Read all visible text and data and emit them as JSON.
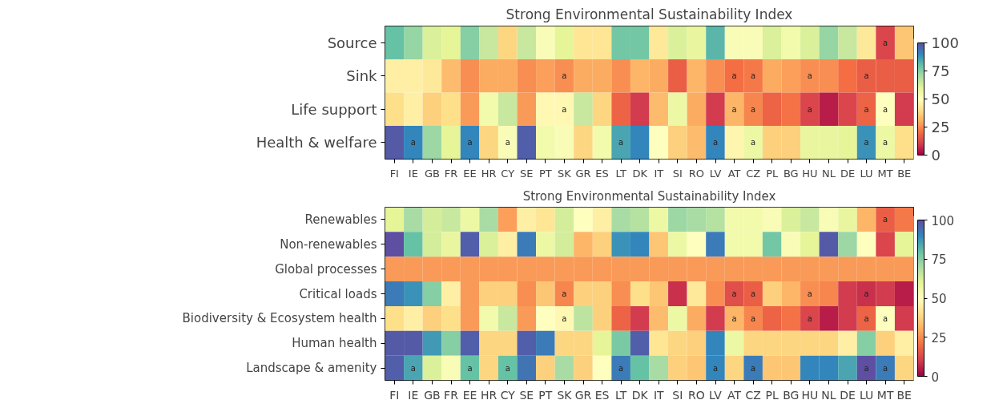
{
  "chart_data": [
    {
      "type": "heatmap",
      "title": "Strong Environmental Sustainability Index",
      "categories": [
        "FI",
        "IE",
        "GB",
        "FR",
        "EE",
        "HR",
        "CY",
        "SE",
        "PT",
        "SK",
        "GR",
        "ES",
        "LT",
        "DK",
        "IT",
        "SI",
        "RO",
        "LV",
        "AT",
        "CZ",
        "PL",
        "BG",
        "HU",
        "NL",
        "DE",
        "LU",
        "MT",
        "BE"
      ],
      "y_categories": [
        "Source",
        "Sink",
        "Life support",
        "Health & welfare"
      ],
      "cells": [
        [
          80,
          73,
          62,
          60,
          75,
          65,
          38,
          65,
          52,
          60,
          42,
          42,
          78,
          78,
          43,
          62,
          58,
          82,
          52,
          52,
          62,
          55,
          62,
          73,
          65,
          43,
          12,
          35
        ],
        [
          45,
          45,
          43,
          33,
          25,
          30,
          30,
          25,
          28,
          25,
          30,
          30,
          25,
          32,
          30,
          17,
          32,
          25,
          20,
          22,
          30,
          28,
          25,
          25,
          20,
          17,
          17,
          17
        ],
        [
          40,
          45,
          37,
          40,
          27,
          55,
          65,
          27,
          48,
          48,
          65,
          38,
          18,
          10,
          33,
          57,
          30,
          10,
          32,
          24,
          18,
          21,
          12,
          5,
          12,
          18,
          50,
          10
        ],
        [
          98,
          90,
          72,
          60,
          90,
          38,
          52,
          97,
          55,
          52,
          38,
          55,
          85,
          90,
          50,
          37,
          33,
          90,
          47,
          57,
          37,
          37,
          58,
          58,
          60,
          88,
          57,
          40
        ]
      ],
      "cell_labels": [
        [
          null,
          null,
          null,
          null,
          null,
          null,
          null,
          null,
          null,
          null,
          null,
          null,
          null,
          null,
          null,
          null,
          null,
          null,
          null,
          null,
          null,
          null,
          null,
          null,
          null,
          null,
          "a",
          null
        ],
        [
          null,
          null,
          null,
          null,
          null,
          null,
          null,
          null,
          null,
          "a",
          null,
          null,
          null,
          null,
          null,
          null,
          null,
          null,
          "a",
          "a",
          null,
          null,
          "a",
          null,
          null,
          "a",
          null,
          null
        ],
        [
          null,
          null,
          null,
          null,
          null,
          null,
          null,
          null,
          null,
          "a",
          null,
          null,
          null,
          null,
          null,
          null,
          null,
          null,
          "a",
          "a",
          null,
          null,
          "a",
          null,
          null,
          "a",
          "a",
          null
        ],
        [
          null,
          "a",
          null,
          null,
          "a",
          null,
          "a",
          null,
          null,
          null,
          null,
          null,
          "a",
          null,
          null,
          null,
          null,
          "a",
          null,
          "a",
          null,
          null,
          null,
          null,
          null,
          "a",
          "a",
          null
        ]
      ],
      "clim": [
        0,
        100
      ],
      "cticks": [
        0,
        25,
        50,
        75,
        100
      ]
    },
    {
      "type": "heatmap",
      "title": "Strong Environmental Sustainability Index",
      "categories": [
        "FI",
        "IE",
        "GB",
        "FR",
        "EE",
        "HR",
        "CY",
        "SE",
        "PT",
        "SK",
        "GR",
        "ES",
        "LT",
        "DK",
        "IT",
        "SI",
        "RO",
        "LV",
        "AT",
        "CZ",
        "PL",
        "BG",
        "HU",
        "NL",
        "DE",
        "LU",
        "MT",
        "BE"
      ],
      "y_categories": [
        "Renewables",
        "Non-renewables",
        "Global processes",
        "Critical loads",
        "Biodiversity & Ecosystem health",
        "Human health",
        "Landscape & amenity"
      ],
      "cells": [
        [
          60,
          70,
          63,
          65,
          57,
          70,
          28,
          45,
          42,
          63,
          50,
          45,
          70,
          68,
          57,
          72,
          70,
          68,
          55,
          55,
          52,
          62,
          65,
          52,
          58,
          32,
          17,
          22
        ],
        [
          100,
          80,
          63,
          58,
          97,
          62,
          45,
          92,
          57,
          63,
          32,
          37,
          88,
          90,
          35,
          57,
          50,
          92,
          55,
          55,
          78,
          52,
          60,
          98,
          72,
          50,
          12,
          60
        ],
        [
          27,
          27,
          27,
          27,
          27,
          27,
          27,
          27,
          27,
          27,
          27,
          27,
          27,
          27,
          27,
          27,
          27,
          27,
          27,
          27,
          27,
          27,
          27,
          27,
          27,
          27,
          27,
          27
        ],
        [
          92,
          88,
          75,
          45,
          27,
          37,
          37,
          25,
          35,
          24,
          37,
          37,
          25,
          40,
          35,
          8,
          43,
          25,
          14,
          17,
          37,
          32,
          25,
          24,
          10,
          8,
          10,
          5
        ],
        [
          40,
          45,
          37,
          40,
          27,
          55,
          65,
          27,
          50,
          48,
          67,
          37,
          18,
          10,
          33,
          57,
          30,
          10,
          32,
          24,
          18,
          21,
          12,
          5,
          10,
          18,
          50,
          10
        ],
        [
          98,
          98,
          87,
          75,
          97,
          38,
          38,
          97,
          92,
          38,
          38,
          60,
          77,
          97,
          42,
          38,
          37,
          90,
          57,
          38,
          38,
          38,
          38,
          38,
          45,
          75,
          37,
          45
        ],
        [
          97,
          85,
          62,
          52,
          80,
          38,
          80,
          93,
          37,
          70,
          37,
          50,
          92,
          80,
          70,
          37,
          35,
          90,
          38,
          92,
          35,
          35,
          90,
          90,
          85,
          100,
          92,
          38
        ]
      ],
      "cell_labels": [
        [
          null,
          null,
          null,
          null,
          null,
          null,
          null,
          null,
          null,
          null,
          null,
          null,
          null,
          null,
          null,
          null,
          null,
          null,
          null,
          null,
          null,
          null,
          null,
          null,
          null,
          null,
          "a",
          null
        ],
        [
          null,
          null,
          null,
          null,
          null,
          null,
          null,
          null,
          null,
          null,
          null,
          null,
          null,
          null,
          null,
          null,
          null,
          null,
          null,
          null,
          null,
          null,
          null,
          null,
          null,
          null,
          null,
          null
        ],
        [
          null,
          null,
          null,
          null,
          null,
          null,
          null,
          null,
          null,
          null,
          null,
          null,
          null,
          null,
          null,
          null,
          null,
          null,
          null,
          null,
          null,
          null,
          null,
          null,
          null,
          null,
          null,
          null
        ],
        [
          null,
          null,
          null,
          null,
          null,
          null,
          null,
          null,
          null,
          "a",
          null,
          null,
          null,
          null,
          null,
          null,
          null,
          null,
          "a",
          "a",
          null,
          null,
          "a",
          null,
          null,
          "a",
          null,
          null
        ],
        [
          null,
          null,
          null,
          null,
          null,
          null,
          null,
          null,
          null,
          "a",
          null,
          null,
          null,
          null,
          null,
          null,
          null,
          null,
          "a",
          "a",
          null,
          null,
          "a",
          null,
          null,
          "a",
          "a",
          null
        ],
        [
          null,
          null,
          null,
          null,
          null,
          null,
          null,
          null,
          null,
          null,
          null,
          null,
          null,
          null,
          null,
          null,
          null,
          null,
          null,
          null,
          null,
          null,
          null,
          null,
          null,
          null,
          null,
          null
        ],
        [
          null,
          "a",
          null,
          null,
          "a",
          null,
          "a",
          null,
          null,
          null,
          null,
          null,
          "a",
          null,
          null,
          null,
          null,
          "a",
          null,
          "a",
          null,
          null,
          null,
          null,
          null,
          "a",
          "a",
          null
        ]
      ],
      "clim": [
        0,
        100
      ],
      "cticks": [
        0,
        25,
        50,
        75,
        100
      ]
    }
  ]
}
